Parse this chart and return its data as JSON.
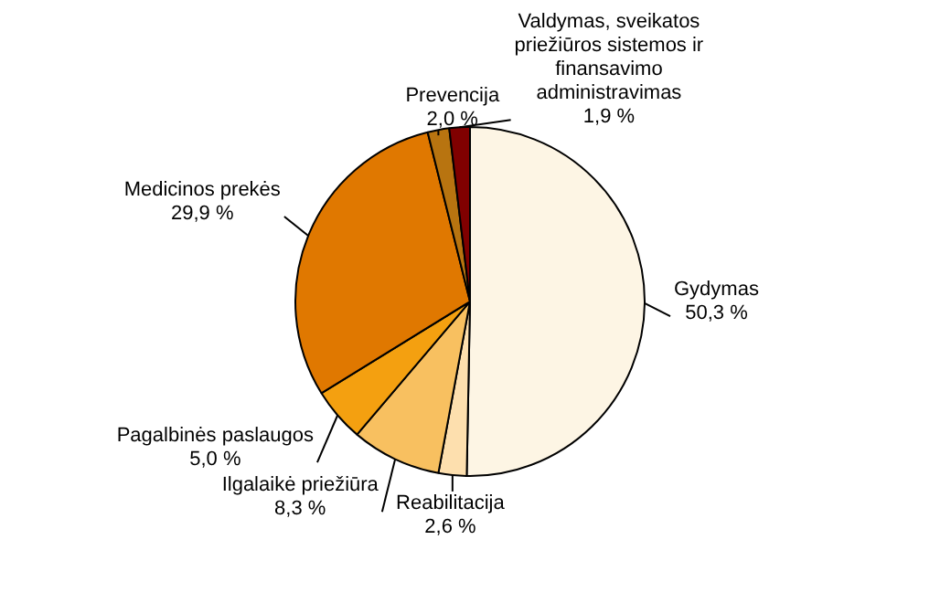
{
  "chart_data": {
    "type": "pie",
    "categories": [
      "Gydymas",
      "Reabilitacija",
      "Ilgalaikė priežiūra",
      "Pagalbinės paslaugos",
      "Medicinos prekės",
      "Prevencija",
      "Valdymas, sveikatos priežiūros sistemos ir finansavimo administravimas"
    ],
    "values": [
      50.3,
      2.6,
      8.3,
      5.0,
      29.9,
      2.0,
      1.9
    ],
    "colors": [
      "#fdf5e4",
      "#fddfae",
      "#f8c060",
      "#f4a010",
      "#e07800",
      "#b87410",
      "#800000"
    ],
    "value_labels": [
      "50,3 %",
      "2,6 %",
      "8,3 %",
      "5,0 %",
      "29,9 %",
      "2,0 %",
      "1,9 %"
    ],
    "legend": false
  }
}
